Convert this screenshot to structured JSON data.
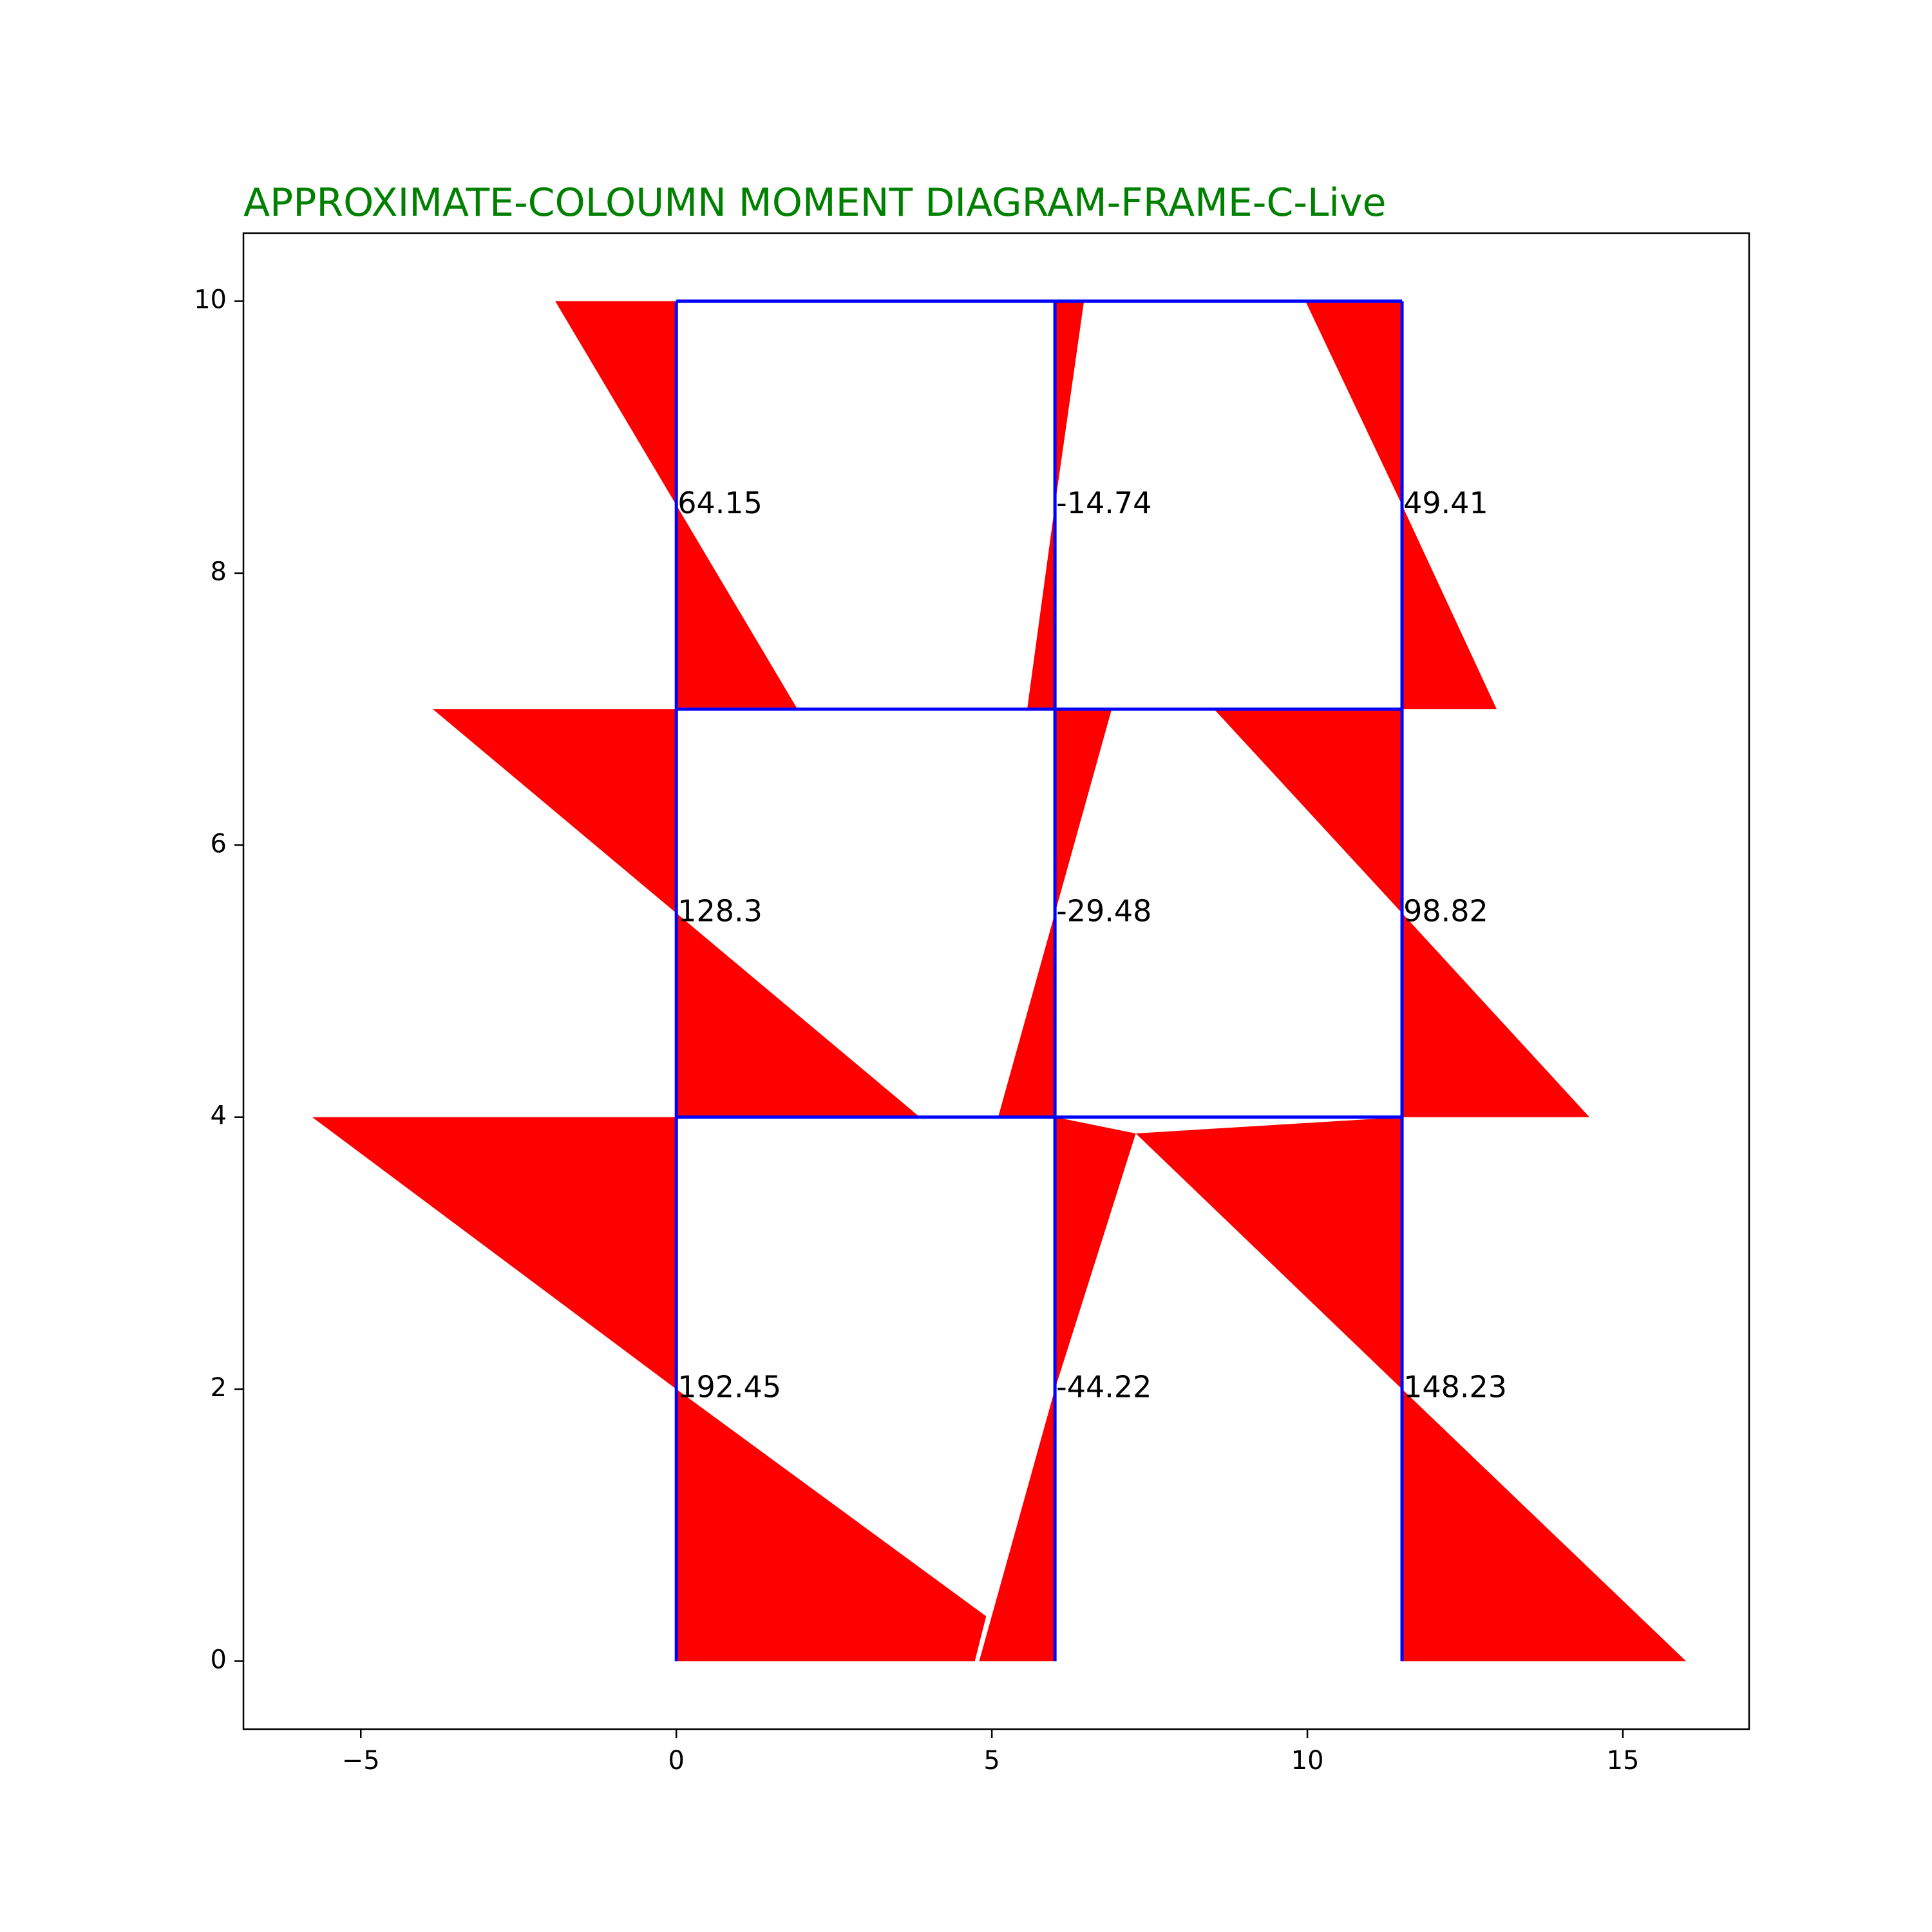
{
  "chart_data": {
    "type": "area",
    "title": "APPROXIMATE-COLOUMN MOMENT DIAGRAM-FRAME-C-Live",
    "xlabel": "",
    "ylabel": "",
    "xlim": [
      -6.86,
      17.0
    ],
    "ylim": [
      -0.5,
      10.5
    ],
    "xticks": [
      -5,
      0,
      5,
      10,
      15
    ],
    "xtick_labels": [
      "−5",
      "0",
      "5",
      "10",
      "15"
    ],
    "yticks": [
      0,
      2,
      4,
      6,
      8,
      10
    ],
    "ytick_labels": [
      "0",
      "2",
      "4",
      "6",
      "8",
      "10"
    ],
    "grid": false,
    "colors": {
      "title": "#008000",
      "frame": "#0000ff",
      "moment_fill": "#ff0000",
      "axes": "#000000"
    },
    "frame": {
      "columns_x": [
        0,
        6,
        11.5
      ],
      "levels_y": [
        0,
        4,
        7,
        10
      ]
    },
    "moment_polygons": [
      [
        [
          0,
          10
        ],
        [
          -1.92,
          10
        ],
        [
          0,
          8.5
        ]
      ],
      [
        [
          0,
          8.5
        ],
        [
          1.92,
          7
        ],
        [
          0,
          7
        ]
      ],
      [
        [
          6,
          10
        ],
        [
          6.46,
          10
        ],
        [
          6,
          8.5
        ]
      ],
      [
        [
          6,
          8.5
        ],
        [
          5.56,
          7
        ],
        [
          6,
          7
        ]
      ],
      [
        [
          11.5,
          10
        ],
        [
          9.97,
          10
        ],
        [
          11.5,
          8.5
        ]
      ],
      [
        [
          11.5,
          8.5
        ],
        [
          13.0,
          7
        ],
        [
          11.5,
          7
        ]
      ],
      [
        [
          0,
          7
        ],
        [
          -3.86,
          7
        ],
        [
          0,
          5.5
        ]
      ],
      [
        [
          0,
          5.5
        ],
        [
          3.86,
          4
        ],
        [
          0,
          4
        ]
      ],
      [
        [
          6,
          7
        ],
        [
          6.9,
          7
        ],
        [
          6,
          5.5
        ]
      ],
      [
        [
          6,
          5.5
        ],
        [
          5.1,
          4
        ],
        [
          6,
          4
        ]
      ],
      [
        [
          11.5,
          7
        ],
        [
          8.52,
          7
        ],
        [
          11.5,
          5.5
        ]
      ],
      [
        [
          11.5,
          5.5
        ],
        [
          14.47,
          4
        ],
        [
          11.5,
          4
        ]
      ],
      [
        [
          0,
          4
        ],
        [
          -5.77,
          4
        ],
        [
          0,
          2
        ]
      ],
      [
        [
          0,
          2
        ],
        [
          4.91,
          0.33
        ],
        [
          4.73,
          0
        ],
        [
          0,
          0
        ]
      ],
      [
        [
          6,
          4
        ],
        [
          7.28,
          3.88
        ],
        [
          6,
          2
        ]
      ],
      [
        [
          6,
          2
        ],
        [
          4.8,
          0
        ],
        [
          6,
          0
        ]
      ],
      [
        [
          11.5,
          4
        ],
        [
          7.28,
          3.88
        ],
        [
          11.5,
          2
        ]
      ],
      [
        [
          11.5,
          2
        ],
        [
          16.0,
          0
        ],
        [
          11.5,
          0
        ]
      ]
    ],
    "moment_labels": [
      {
        "x": 0,
        "y": 8.5,
        "text": "64.15"
      },
      {
        "x": 6,
        "y": 8.5,
        "text": "-14.74"
      },
      {
        "x": 11.5,
        "y": 8.5,
        "text": "49.41"
      },
      {
        "x": 0,
        "y": 5.5,
        "text": "128.3"
      },
      {
        "x": 6,
        "y": 5.5,
        "text": "-29.48"
      },
      {
        "x": 11.5,
        "y": 5.5,
        "text": "98.82"
      },
      {
        "x": 0,
        "y": 2,
        "text": "192.45"
      },
      {
        "x": 6,
        "y": 2,
        "text": "-44.22"
      },
      {
        "x": 11.5,
        "y": 2,
        "text": "148.23"
      }
    ]
  }
}
